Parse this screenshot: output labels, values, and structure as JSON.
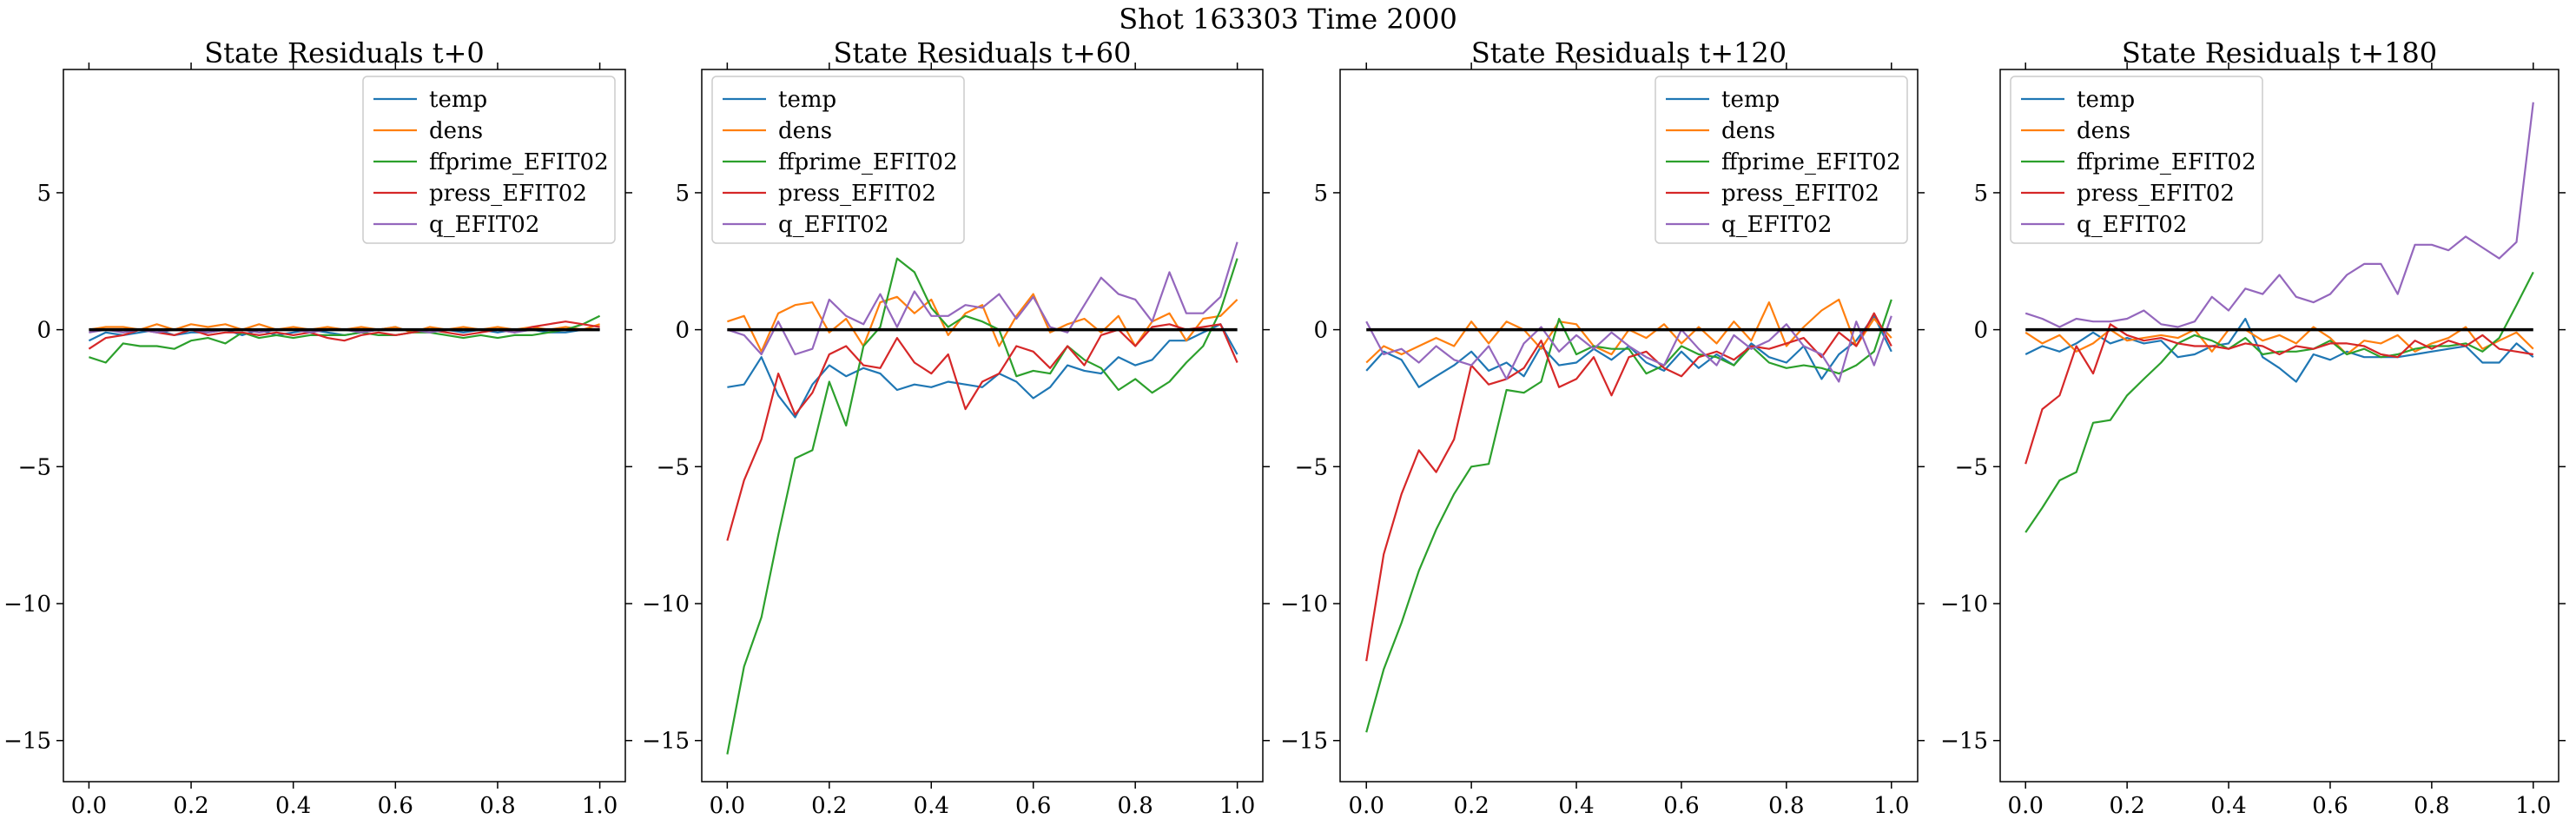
{
  "figure": {
    "suptitle": "Shot 163303   Time 2000",
    "colors": {
      "temp": "#1f77b4",
      "dens": "#ff7f0e",
      "ffprime_EFIT02": "#2ca02c",
      "press_EFIT02": "#d62728",
      "q_EFIT02": "#9467bd",
      "zero_line": "#000000"
    }
  },
  "chart_data": [
    {
      "type": "line",
      "title": "State Residuals t+0",
      "xlim": [
        -0.05,
        1.05
      ],
      "ylim": [
        -16.5,
        9.5
      ],
      "xticks": [
        0.0,
        0.2,
        0.4,
        0.6,
        0.8,
        1.0
      ],
      "xtick_labels": [
        "0.0",
        "0.2",
        "0.4",
        "0.6",
        "0.8",
        "1.0"
      ],
      "yticks": [
        -15,
        -10,
        -5,
        0,
        5
      ],
      "ytick_labels": [
        "−15",
        "−10",
        "−5",
        "0",
        "5"
      ],
      "legend_position": "top-right",
      "x": [
        0.0,
        0.033,
        0.067,
        0.1,
        0.133,
        0.167,
        0.2,
        0.233,
        0.267,
        0.3,
        0.333,
        0.367,
        0.4,
        0.433,
        0.467,
        0.5,
        0.533,
        0.567,
        0.6,
        0.633,
        0.667,
        0.7,
        0.733,
        0.767,
        0.8,
        0.833,
        0.867,
        0.9,
        0.933,
        0.967,
        1.0
      ],
      "reference_line": 0,
      "series": [
        {
          "name": "temp",
          "values": [
            -0.4,
            -0.1,
            -0.2,
            -0.1,
            0.0,
            -0.2,
            -0.1,
            -0.1,
            0.0,
            -0.2,
            0.0,
            -0.2,
            -0.1,
            0.0,
            -0.1,
            -0.2,
            -0.1,
            0.0,
            0.1,
            -0.1,
            0.0,
            0.0,
            -0.1,
            0.0,
            -0.1,
            0.0,
            0.0,
            -0.1,
            -0.1,
            0.0,
            0.0
          ]
        },
        {
          "name": "dens",
          "values": [
            0.0,
            0.1,
            0.1,
            0.0,
            0.2,
            0.0,
            0.2,
            0.1,
            0.2,
            0.0,
            0.2,
            0.0,
            0.1,
            0.0,
            0.1,
            0.0,
            0.1,
            0.0,
            0.1,
            -0.1,
            0.1,
            0.0,
            0.1,
            0.0,
            0.1,
            0.0,
            0.1,
            0.0,
            0.1,
            0.0,
            0.2
          ]
        },
        {
          "name": "ffprime_EFIT02",
          "values": [
            -1.0,
            -1.2,
            -0.5,
            -0.6,
            -0.6,
            -0.7,
            -0.4,
            -0.3,
            -0.5,
            -0.1,
            -0.3,
            -0.2,
            -0.3,
            -0.2,
            -0.2,
            -0.2,
            -0.1,
            -0.2,
            -0.2,
            -0.1,
            -0.1,
            -0.2,
            -0.3,
            -0.2,
            -0.3,
            -0.2,
            -0.2,
            -0.1,
            0.0,
            0.2,
            0.5
          ]
        },
        {
          "name": "press_EFIT02",
          "values": [
            -0.7,
            -0.3,
            -0.2,
            0.0,
            -0.1,
            -0.2,
            0.0,
            -0.2,
            -0.1,
            -0.1,
            -0.2,
            -0.1,
            -0.2,
            -0.1,
            -0.3,
            -0.4,
            -0.2,
            -0.1,
            -0.2,
            -0.1,
            0.0,
            -0.1,
            -0.2,
            -0.1,
            0.0,
            -0.1,
            0.1,
            0.2,
            0.3,
            0.2,
            0.1
          ]
        },
        {
          "name": "q_EFIT02",
          "values": [
            -0.1,
            0.0,
            -0.1,
            0.0,
            -0.1,
            0.0,
            0.0,
            -0.1,
            0.0,
            0.0,
            -0.1,
            0.0,
            0.0,
            -0.1,
            0.0,
            0.0,
            -0.1,
            0.0,
            0.0,
            0.0,
            -0.1,
            0.0,
            0.0,
            0.0,
            0.0,
            -0.1,
            0.0,
            0.0,
            0.0,
            0.0,
            0.0
          ]
        }
      ]
    },
    {
      "type": "line",
      "title": "State Residuals t+60",
      "xlim": [
        -0.05,
        1.05
      ],
      "ylim": [
        -16.5,
        9.5
      ],
      "xticks": [
        0.0,
        0.2,
        0.4,
        0.6,
        0.8,
        1.0
      ],
      "xtick_labels": [
        "0.0",
        "0.2",
        "0.4",
        "0.6",
        "0.8",
        "1.0"
      ],
      "yticks": [
        -15,
        -10,
        -5,
        0,
        5
      ],
      "ytick_labels": [
        "−15",
        "−10",
        "−5",
        "0",
        "5"
      ],
      "legend_position": "top-left",
      "x": [
        0.0,
        0.033,
        0.067,
        0.1,
        0.133,
        0.167,
        0.2,
        0.233,
        0.267,
        0.3,
        0.333,
        0.367,
        0.4,
        0.433,
        0.467,
        0.5,
        0.533,
        0.567,
        0.6,
        0.633,
        0.667,
        0.7,
        0.733,
        0.767,
        0.8,
        0.833,
        0.867,
        0.9,
        0.933,
        0.967,
        1.0
      ],
      "reference_line": 0,
      "series": [
        {
          "name": "temp",
          "values": [
            -2.1,
            -2.0,
            -1.0,
            -2.4,
            -3.2,
            -2.0,
            -1.3,
            -1.7,
            -1.4,
            -1.6,
            -2.2,
            -2.0,
            -2.1,
            -1.9,
            -2.0,
            -2.1,
            -1.6,
            -1.9,
            -2.5,
            -2.1,
            -1.3,
            -1.5,
            -1.6,
            -1.0,
            -1.3,
            -1.1,
            -0.4,
            -0.4,
            -0.1,
            0.2,
            -0.9
          ]
        },
        {
          "name": "dens",
          "values": [
            0.3,
            0.5,
            -0.8,
            0.6,
            0.9,
            1.0,
            -0.1,
            0.4,
            -0.6,
            1.0,
            1.2,
            0.6,
            1.1,
            -0.2,
            0.6,
            0.9,
            -0.6,
            0.5,
            1.3,
            -0.1,
            0.2,
            0.4,
            -0.1,
            0.5,
            -0.6,
            0.3,
            0.6,
            -0.4,
            0.4,
            0.5,
            1.1
          ]
        },
        {
          "name": "ffprime_EFIT02",
          "values": [
            -15.5,
            -12.3,
            -10.5,
            -7.5,
            -4.7,
            -4.4,
            -1.9,
            -3.5,
            -0.6,
            0.1,
            2.6,
            2.1,
            0.8,
            0.1,
            0.5,
            0.3,
            0.0,
            -1.7,
            -1.5,
            -1.6,
            -0.6,
            -1.1,
            -1.4,
            -2.2,
            -1.8,
            -2.3,
            -1.9,
            -1.2,
            -0.6,
            0.7,
            2.6
          ]
        },
        {
          "name": "press_EFIT02",
          "values": [
            -7.7,
            -5.5,
            -4.0,
            -1.6,
            -3.1,
            -2.3,
            -0.9,
            -0.6,
            -1.3,
            -1.4,
            -0.3,
            -1.2,
            -1.6,
            -0.9,
            -2.9,
            -1.9,
            -1.6,
            -0.6,
            -0.8,
            -1.4,
            -0.6,
            -1.3,
            -0.2,
            0.0,
            -0.6,
            0.1,
            0.2,
            0.0,
            0.1,
            0.2,
            -1.2
          ]
        },
        {
          "name": "q_EFIT02",
          "values": [
            0.0,
            -0.2,
            -0.9,
            0.3,
            -0.9,
            -0.7,
            1.1,
            0.5,
            0.2,
            1.3,
            0.1,
            1.4,
            0.5,
            0.5,
            0.9,
            0.8,
            1.3,
            0.4,
            1.2,
            0.1,
            -0.1,
            0.9,
            1.9,
            1.3,
            1.1,
            0.3,
            2.1,
            0.6,
            0.6,
            1.2,
            3.2
          ]
        }
      ]
    },
    {
      "type": "line",
      "title": "State Residuals t+120",
      "xlim": [
        -0.05,
        1.05
      ],
      "ylim": [
        -16.5,
        9.5
      ],
      "xticks": [
        0.0,
        0.2,
        0.4,
        0.6,
        0.8,
        1.0
      ],
      "xtick_labels": [
        "0.0",
        "0.2",
        "0.4",
        "0.6",
        "0.8",
        "1.0"
      ],
      "yticks": [
        -15,
        -10,
        -5,
        0,
        5
      ],
      "ytick_labels": [
        "−15",
        "−10",
        "−5",
        "0",
        "5"
      ],
      "legend_position": "top-right",
      "x": [
        0.0,
        0.033,
        0.067,
        0.1,
        0.133,
        0.167,
        0.2,
        0.233,
        0.267,
        0.3,
        0.333,
        0.367,
        0.4,
        0.433,
        0.467,
        0.5,
        0.533,
        0.567,
        0.6,
        0.633,
        0.667,
        0.7,
        0.733,
        0.767,
        0.8,
        0.833,
        0.867,
        0.9,
        0.933,
        0.967,
        1.0
      ],
      "reference_line": 0,
      "series": [
        {
          "name": "temp",
          "values": [
            -1.5,
            -0.8,
            -1.1,
            -2.1,
            -1.7,
            -1.3,
            -0.8,
            -1.5,
            -1.2,
            -1.7,
            -0.6,
            -1.3,
            -1.2,
            -0.7,
            -1.1,
            -0.6,
            -1.2,
            -1.5,
            -0.8,
            -1.4,
            -0.9,
            -1.3,
            -0.5,
            -1.0,
            -1.2,
            -0.6,
            -1.8,
            -0.9,
            -0.4,
            0.5,
            -0.8
          ]
        },
        {
          "name": "dens",
          "values": [
            -1.2,
            -0.6,
            -0.9,
            -0.6,
            -0.3,
            -0.6,
            0.3,
            -0.5,
            0.3,
            0.0,
            -0.7,
            0.3,
            0.2,
            -0.6,
            -0.9,
            0.0,
            -0.3,
            0.2,
            -0.5,
            0.1,
            -0.5,
            0.3,
            -0.4,
            1.0,
            -0.6,
            0.1,
            0.7,
            1.1,
            -0.6,
            0.4,
            -0.3
          ]
        },
        {
          "name": "ffprime_EFIT02",
          "values": [
            -14.7,
            -12.4,
            -10.7,
            -8.8,
            -7.3,
            -6.0,
            -5.0,
            -4.9,
            -2.2,
            -2.3,
            -1.9,
            0.4,
            -0.9,
            -0.6,
            -0.7,
            -0.7,
            -1.6,
            -1.3,
            -0.6,
            -0.9,
            -1.0,
            -1.3,
            -0.6,
            -1.2,
            -1.4,
            -1.3,
            -1.4,
            -1.6,
            -1.3,
            -0.8,
            1.1
          ]
        },
        {
          "name": "press_EFIT02",
          "values": [
            -12.1,
            -8.2,
            -6.0,
            -4.4,
            -5.2,
            -4.0,
            -1.3,
            -2.0,
            -1.8,
            -1.4,
            -0.4,
            -2.1,
            -1.8,
            -1.0,
            -2.4,
            -1.0,
            -0.8,
            -1.4,
            -1.7,
            -1.0,
            -0.8,
            -1.1,
            -0.6,
            -0.7,
            -0.5,
            -0.3,
            -1.0,
            -0.1,
            -0.6,
            0.6,
            -0.6
          ]
        },
        {
          "name": "q_EFIT02",
          "values": [
            0.3,
            -0.9,
            -0.7,
            -1.2,
            -0.6,
            -1.1,
            -1.3,
            -0.6,
            -1.8,
            -0.5,
            0.1,
            -0.8,
            -0.2,
            -0.7,
            -0.1,
            -0.6,
            -1.0,
            -1.3,
            0.0,
            -0.7,
            -1.3,
            -0.2,
            -0.7,
            -0.4,
            0.2,
            -0.6,
            -0.9,
            -1.9,
            0.3,
            -1.3,
            0.5
          ]
        }
      ]
    },
    {
      "type": "line",
      "title": "State Residuals t+180",
      "xlim": [
        -0.05,
        1.05
      ],
      "ylim": [
        -16.5,
        9.5
      ],
      "xticks": [
        0.0,
        0.2,
        0.4,
        0.6,
        0.8,
        1.0
      ],
      "xtick_labels": [
        "0.0",
        "0.2",
        "0.4",
        "0.6",
        "0.8",
        "1.0"
      ],
      "yticks": [
        -15,
        -10,
        -5,
        0,
        5
      ],
      "ytick_labels": [
        "−15",
        "−10",
        "−5",
        "0",
        "5"
      ],
      "legend_position": "top-left",
      "x": [
        0.0,
        0.033,
        0.067,
        0.1,
        0.133,
        0.167,
        0.2,
        0.233,
        0.267,
        0.3,
        0.333,
        0.367,
        0.4,
        0.433,
        0.467,
        0.5,
        0.533,
        0.567,
        0.6,
        0.633,
        0.667,
        0.7,
        0.733,
        0.767,
        0.8,
        0.833,
        0.867,
        0.9,
        0.933,
        0.967,
        1.0
      ],
      "reference_line": 0,
      "series": [
        {
          "name": "temp",
          "values": [
            -0.9,
            -0.6,
            -0.8,
            -0.5,
            -0.1,
            -0.5,
            -0.3,
            -0.5,
            -0.4,
            -1.0,
            -0.9,
            -0.6,
            -0.5,
            0.4,
            -1.0,
            -1.4,
            -1.9,
            -0.9,
            -1.1,
            -0.8,
            -1.0,
            -1.0,
            -1.0,
            -0.9,
            -0.8,
            -0.7,
            -0.6,
            -1.2,
            -1.2,
            -0.5,
            -1.0
          ]
        },
        {
          "name": "dens",
          "values": [
            -0.1,
            -0.5,
            -0.2,
            -0.8,
            -0.5,
            0.0,
            -0.4,
            -0.3,
            -0.2,
            -0.3,
            0.0,
            -0.8,
            0.0,
            0.0,
            -0.4,
            -0.2,
            -0.5,
            0.1,
            -0.3,
            -0.9,
            -0.4,
            -0.5,
            -0.2,
            -0.8,
            -0.5,
            -0.3,
            0.1,
            -0.7,
            -0.4,
            -0.1,
            -0.7
          ]
        },
        {
          "name": "ffprime_EFIT02",
          "values": [
            -7.4,
            -6.5,
            -5.5,
            -5.2,
            -3.4,
            -3.3,
            -2.4,
            -1.8,
            -1.2,
            -0.5,
            -0.2,
            -0.4,
            -0.7,
            -0.3,
            -0.9,
            -0.8,
            -0.8,
            -0.7,
            -0.4,
            -0.9,
            -0.7,
            -1.0,
            -0.9,
            -0.7,
            -0.6,
            -0.6,
            -0.5,
            -0.8,
            -0.3,
            0.9,
            2.1
          ]
        },
        {
          "name": "press_EFIT02",
          "values": [
            -4.9,
            -2.9,
            -2.4,
            -0.6,
            -1.6,
            0.2,
            -0.2,
            -0.4,
            -0.3,
            -0.5,
            -0.6,
            -0.6,
            -0.7,
            -0.5,
            -0.6,
            -0.9,
            -0.6,
            -0.7,
            -0.5,
            -0.5,
            -0.6,
            -0.9,
            -1.0,
            -0.4,
            -0.7,
            -0.4,
            -0.6,
            -0.2,
            -0.7,
            -0.8,
            -0.9
          ]
        },
        {
          "name": "q_EFIT02",
          "values": [
            0.6,
            0.4,
            0.1,
            0.4,
            0.3,
            0.3,
            0.4,
            0.7,
            0.2,
            0.1,
            0.3,
            1.2,
            0.7,
            1.5,
            1.3,
            2.0,
            1.2,
            1.0,
            1.3,
            2.0,
            2.4,
            2.4,
            1.3,
            3.1,
            3.1,
            2.9,
            3.4,
            3.0,
            2.6,
            3.2,
            8.3
          ]
        }
      ]
    }
  ]
}
